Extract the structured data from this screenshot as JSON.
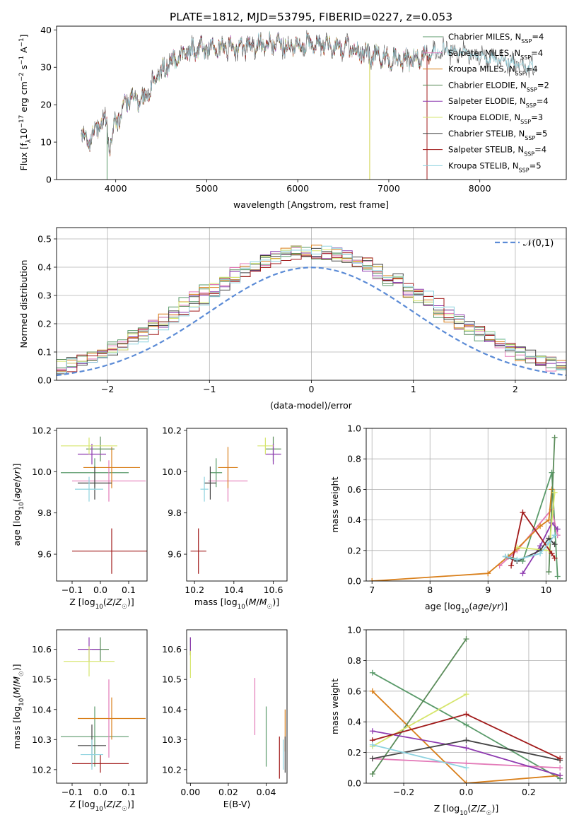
{
  "figure": {
    "title": "PLATE=1812, MJD=53795, FIBERID=0227, z=0.053"
  },
  "colors": [
    "#5a9a6a",
    "#e37ab8",
    "#d97f1a",
    "#5b8c5a",
    "#8e3bb0",
    "#d6e56c",
    "#444444",
    "#a11a1a",
    "#8fd3e0"
  ],
  "chart_data": [
    {
      "id": "spectrum",
      "type": "line",
      "title": "PLATE=1812, MJD=53795, FIBERID=0227, z=0.053",
      "xlabel": "wavelength [Angstrom, rest frame]",
      "ylabel": "Flux [f_λ10^-17 erg cm^-2 s^-1 A^-1]",
      "xlim": [
        3350,
        8950
      ],
      "ylim": [
        0,
        41
      ],
      "xticks": [
        4000,
        5000,
        6000,
        7000,
        8000
      ],
      "yticks": [
        0,
        10,
        20,
        30,
        40
      ],
      "legend_loc": "upper right",
      "continuum": {
        "x": [
          3620,
          3700,
          3800,
          3900,
          3930,
          4000,
          4100,
          4200,
          4300,
          4400,
          4500,
          4700,
          4900,
          5100,
          5300,
          5600,
          5900,
          6200,
          6500,
          6700,
          6900,
          7100,
          7200,
          7400,
          7600,
          7800,
          8000,
          8200,
          8400,
          8600
        ],
        "y": [
          12,
          10,
          14,
          16,
          8,
          15,
          20,
          22,
          21,
          25,
          29,
          33,
          35,
          35,
          35,
          36,
          36,
          36,
          35,
          34,
          33,
          32,
          32,
          33,
          35,
          34,
          33,
          32,
          31,
          30
        ]
      },
      "series": [
        {
          "name": "Chabrier MILES, N_SSP=4"
        },
        {
          "name": "Salpeter MILES, N_SSP=4"
        },
        {
          "name": "Kroupa MILES, N_SSP=4"
        },
        {
          "name": "Chabrier ELODIE, N_SSP=2"
        },
        {
          "name": "Salpeter ELODIE, N_SSP=4"
        },
        {
          "name": "Kroupa ELODIE, N_SSP=3"
        },
        {
          "name": "Chabrier STELIB, N_SSP=5"
        },
        {
          "name": "Salpeter STELIB, N_SSP=4"
        },
        {
          "name": "Kroupa STELIB, N_SSP=5"
        }
      ]
    },
    {
      "id": "residuals",
      "type": "line",
      "xlabel": "(data-model)/error",
      "ylabel": "Normed distribution",
      "xlim": [
        -2.5,
        2.5
      ],
      "ylim": [
        0,
        0.54
      ],
      "xticks": [
        -2,
        -1,
        0,
        1,
        2
      ],
      "yticks": [
        0.0,
        0.1,
        0.2,
        0.3,
        0.4,
        0.5
      ],
      "grid": true,
      "legend": "𝒩(0,1)",
      "bin_width": 0.1,
      "bin_start": -2.5
    },
    {
      "id": "age_vs_Z",
      "type": "scatter",
      "xlabel": "Z [log10(Z/Z☉)]",
      "ylabel": "age  [log10(age/yr)]",
      "xlim": [
        -0.155,
        0.165
      ],
      "ylim": [
        9.47,
        10.21
      ],
      "xticks": [
        -0.1,
        0.0,
        0.1
      ],
      "yticks": [
        9.6,
        9.8,
        10.0,
        10.2
      ],
      "points": [
        {
          "x": -0.02,
          "y": 9.995,
          "xerr": 0.12,
          "yerr": 0.07
        },
        {
          "x": 0.03,
          "y": 9.955,
          "xerr": 0.13,
          "yerr": 0.1
        },
        {
          "x": 0.04,
          "y": 10.02,
          "xerr": 0.1,
          "yerr": 0.1
        },
        {
          "x": 0.0,
          "y": 10.11,
          "xerr": 0.05,
          "yerr": 0.06
        },
        {
          "x": -0.03,
          "y": 10.085,
          "xerr": 0.05,
          "yerr": 0.05
        },
        {
          "x": -0.04,
          "y": 10.125,
          "xerr": 0.1,
          "yerr": 0.04
        },
        {
          "x": -0.02,
          "y": 9.945,
          "xerr": 0.06,
          "yerr": 0.08
        },
        {
          "x": 0.04,
          "y": 9.615,
          "xerr": 0.14,
          "yerr": 0.11
        },
        {
          "x": -0.04,
          "y": 9.915,
          "xerr": 0.05,
          "yerr": 0.06
        }
      ]
    },
    {
      "id": "age_vs_mass",
      "type": "scatter",
      "xlabel": "mass [log10(M/M☉)]",
      "ylabel": "",
      "xlim": [
        10.16,
        10.67
      ],
      "ylim": [
        9.47,
        10.21
      ],
      "xticks": [
        10.2,
        10.4,
        10.6
      ],
      "yticks": [
        9.6,
        9.8,
        10.0,
        10.2
      ],
      "points": [
        {
          "x": 10.31,
          "y": 9.995,
          "xerr": 0.03,
          "yerr": 0.07
        },
        {
          "x": 10.37,
          "y": 9.955,
          "xerr": 0.1,
          "yerr": 0.1
        },
        {
          "x": 10.37,
          "y": 10.02,
          "xerr": 0.05,
          "yerr": 0.1
        },
        {
          "x": 10.6,
          "y": 10.11,
          "xerr": 0.04,
          "yerr": 0.06
        },
        {
          "x": 10.6,
          "y": 10.085,
          "xerr": 0.04,
          "yerr": 0.05
        },
        {
          "x": 10.56,
          "y": 10.125,
          "xerr": 0.04,
          "yerr": 0.04
        },
        {
          "x": 10.28,
          "y": 9.945,
          "xerr": 0.03,
          "yerr": 0.08
        },
        {
          "x": 10.22,
          "y": 9.615,
          "xerr": 0.04,
          "yerr": 0.11
        },
        {
          "x": 10.25,
          "y": 9.915,
          "xerr": 0.02,
          "yerr": 0.06
        }
      ]
    },
    {
      "id": "weight_vs_age",
      "type": "line",
      "xlabel": "age  [log10(age/yr)]",
      "ylabel": "mass weight",
      "xlim": [
        6.9,
        10.35
      ],
      "ylim": [
        0,
        1
      ],
      "xticks": [
        7,
        8,
        9,
        10
      ],
      "yticks": [
        0.0,
        0.2,
        0.4,
        0.6,
        0.8,
        1.0
      ],
      "grid": true,
      "series": [
        {
          "x": [
            9.35,
            9.6,
            10.1,
            10.2
          ],
          "y": [
            0.16,
            0.13,
            0.71,
            0.03
          ]
        },
        {
          "x": [
            9.2,
            9.5,
            10.1,
            10.2
          ],
          "y": [
            0.1,
            0.2,
            0.47,
            0.3
          ]
        },
        {
          "x": [
            7.0,
            9.0,
            9.5,
            9.9,
            10.05,
            10.1
          ],
          "y": [
            0.0,
            0.05,
            0.21,
            0.36,
            0.4,
            0.6
          ]
        },
        {
          "x": [
            10.05,
            10.15
          ],
          "y": [
            0.06,
            0.94
          ]
        },
        {
          "x": [
            9.6,
            9.9,
            10.1,
            10.2
          ],
          "y": [
            0.05,
            0.23,
            0.38,
            0.34
          ]
        },
        {
          "x": [
            9.5,
            10.05,
            10.15
          ],
          "y": [
            0.22,
            0.2,
            0.58
          ]
        },
        {
          "x": [
            9.3,
            9.5,
            9.9,
            10.05,
            10.15
          ],
          "y": [
            0.16,
            0.13,
            0.2,
            0.28,
            0.24
          ]
        },
        {
          "x": [
            9.4,
            9.6,
            10.1,
            10.15
          ],
          "y": [
            0.1,
            0.45,
            0.18,
            0.15
          ]
        },
        {
          "x": [
            9.3,
            9.5,
            9.9,
            10.05,
            10.15
          ],
          "y": [
            0.16,
            0.14,
            0.18,
            0.25,
            0.3
          ]
        }
      ]
    },
    {
      "id": "mass_vs_Z",
      "type": "scatter",
      "xlabel": "Z [log10(Z/Z☉)]",
      "ylabel": "mass [log10(M/M☉)]",
      "xlim": [
        -0.155,
        0.165
      ],
      "ylim": [
        10.155,
        10.665
      ],
      "xticks": [
        -0.1,
        0.0,
        0.1
      ],
      "yticks": [
        10.2,
        10.3,
        10.4,
        10.5,
        10.6
      ],
      "points": [
        {
          "x": -0.02,
          "y": 10.31,
          "xerr": 0.12,
          "yerr": 0.1
        },
        {
          "x": 0.03,
          "y": 10.37,
          "xerr": 0.0,
          "yerr": 0.13
        },
        {
          "x": 0.04,
          "y": 10.37,
          "xerr": 0.12,
          "yerr": 0.07
        },
        {
          "x": 0.0,
          "y": 10.6,
          "xerr": 0.03,
          "yerr": 0.04
        },
        {
          "x": -0.04,
          "y": 10.6,
          "xerr": 0.04,
          "yerr": 0.04
        },
        {
          "x": -0.04,
          "y": 10.56,
          "xerr": 0.09,
          "yerr": 0.05
        },
        {
          "x": -0.03,
          "y": 10.28,
          "xerr": 0.05,
          "yerr": 0.07
        },
        {
          "x": 0.0,
          "y": 10.22,
          "xerr": 0.1,
          "yerr": 0.03
        },
        {
          "x": -0.03,
          "y": 10.25,
          "xerr": 0.04,
          "yerr": 0.05
        }
      ]
    },
    {
      "id": "mass_vs_ebv",
      "type": "scatter",
      "xlabel": "E(B-V)",
      "ylabel": "",
      "xlim": [
        -0.002,
        0.051
      ],
      "ylim": [
        10.155,
        10.665
      ],
      "xticks": [
        0.0,
        0.02,
        0.04
      ],
      "yticks": [
        10.2,
        10.3,
        10.4,
        10.5,
        10.6
      ],
      "points": [
        {
          "x": 0.04,
          "y": 10.31,
          "yerr": 0.1
        },
        {
          "x": 0.034,
          "y": 10.41,
          "yerr": 0.095
        },
        {
          "x": 0.05,
          "y": 10.33,
          "yerr": 0.07
        },
        {
          "x": 0.0,
          "y": 10.61,
          "yerr": 0.03
        },
        {
          "x": 0.0,
          "y": 10.61,
          "yerr": 0.03
        },
        {
          "x": 0.0,
          "y": 10.55,
          "yerr": 0.045
        },
        {
          "x": 0.05,
          "y": 10.25,
          "yerr": 0.06
        },
        {
          "x": 0.047,
          "y": 10.24,
          "yerr": 0.07
        },
        {
          "x": 0.049,
          "y": 10.25,
          "yerr": 0.05
        }
      ]
    },
    {
      "id": "weight_vs_Z",
      "type": "line",
      "xlabel": "Z [log10(Z/Z☉)]",
      "ylabel": "mass weight",
      "xlim": [
        -0.32,
        0.32
      ],
      "ylim": [
        0,
        1
      ],
      "xticks": [
        -0.2,
        0.0,
        0.2
      ],
      "yticks": [
        0.0,
        0.2,
        0.4,
        0.6,
        0.8,
        1.0
      ],
      "grid": true,
      "series": [
        {
          "x": [
            -0.3,
            0.0,
            0.3
          ],
          "y": [
            0.72,
            0.38,
            0.03
          ]
        },
        {
          "x": [
            -0.3,
            0.0,
            0.3
          ],
          "y": [
            0.16,
            0.13,
            0.1
          ]
        },
        {
          "x": [
            -0.3,
            0.0,
            0.3
          ],
          "y": [
            0.6,
            0.0,
            0.05
          ]
        },
        {
          "x": [
            -0.3,
            0.0
          ],
          "y": [
            0.06,
            0.94
          ]
        },
        {
          "x": [
            -0.3,
            0.0,
            0.3
          ],
          "y": [
            0.34,
            0.23,
            0.05
          ]
        },
        {
          "x": [
            -0.3,
            0.0
          ],
          "y": [
            0.24,
            0.58
          ]
        },
        {
          "x": [
            -0.3,
            0.0,
            0.3
          ],
          "y": [
            0.16,
            0.28,
            0.15
          ]
        },
        {
          "x": [
            -0.3,
            0.0,
            0.3
          ],
          "y": [
            0.28,
            0.45,
            0.16
          ]
        },
        {
          "x": [
            -0.3,
            0.0
          ],
          "y": [
            0.25,
            0.1
          ]
        }
      ]
    }
  ]
}
